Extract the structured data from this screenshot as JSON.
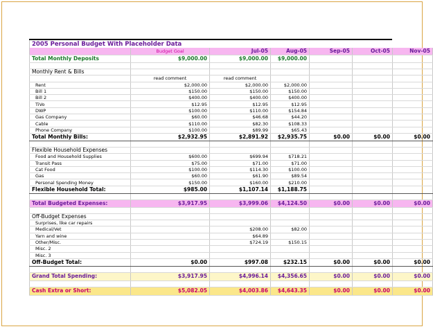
{
  "title": "2005 Personal Budget With Placeholder Data",
  "header": [
    "",
    "Budget Goal",
    "Jul-05",
    "Aug-05",
    "Sep-05",
    "Oct-05",
    "Nov-05"
  ],
  "deposits": {
    "label": "Total Monthly Deposits",
    "values": [
      "$9,000.00",
      "$9,000.00",
      "$9,000.00",
      "",
      "",
      ""
    ]
  },
  "rent": {
    "section": "Monthly Rent & Bills",
    "note": [
      "read comment",
      "read comment"
    ],
    "items": [
      [
        "Rent",
        "$2,000.00",
        "$2,000.00",
        "$2,000.00"
      ],
      [
        "Bill 1",
        "$150.00",
        "$150.00",
        "$150.00"
      ],
      [
        "Bill 2",
        "$400.00",
        "$400.00",
        "$400.00"
      ],
      [
        "TiVo",
        "$12.95",
        "$12.95",
        "$12.95"
      ],
      [
        "DWP",
        "$100.00",
        "$110.00",
        "$154.84"
      ],
      [
        "Gas Company",
        "$60.00",
        "$46.68",
        "$44.20"
      ],
      [
        "Cable",
        "$110.00",
        "$82.30",
        "$108.33"
      ],
      [
        "Phone Company",
        "$100.00",
        "$89.99",
        "$65.43"
      ]
    ],
    "total": [
      "Total Monthly Bills:",
      "$2,932.95",
      "$2,891.92",
      "$2,935.75",
      "$0.00",
      "$0.00",
      "$0.00"
    ]
  },
  "household": {
    "section": "Flexible Household Expenses",
    "items": [
      [
        "Food and Household Supplies",
        "$600.00",
        "$699.94",
        "$718.21"
      ],
      [
        "Transit Pass",
        "$75.00",
        "$71.00",
        "$71.00"
      ],
      [
        "Cat Food",
        "$100.00",
        "$114.30",
        "$100.00"
      ],
      [
        "Gas",
        "$60.00",
        "$61.90",
        "$89.54"
      ],
      [
        "Personal Spending Money",
        "$150.00",
        "$160.00",
        "$210.00"
      ]
    ],
    "total": [
      "Flexible Household Total:",
      "$985.00",
      "$1,107.14",
      "$1,188.75",
      "",
      "",
      ""
    ]
  },
  "budgeted": [
    "Total Budgeted Expenses:",
    "$3,917.95",
    "$3,999.06",
    "$4,124.50",
    "$0.00",
    "$0.00",
    "$0.00"
  ],
  "offbudget": {
    "section": "Off-Budget Expenses",
    "items": [
      [
        "Surprises, like car repairs",
        "",
        "",
        ""
      ],
      [
        "Medical/Vet",
        "",
        "$208.00",
        "$82.00"
      ],
      [
        "Yarn and wine",
        "",
        "$64.89",
        ""
      ],
      [
        "Other/Misc.",
        "",
        "$724.19",
        "$150.15"
      ],
      [
        "Misc. 2",
        "",
        "",
        ""
      ],
      [
        "Misc. 3",
        "",
        "",
        ""
      ]
    ],
    "total": [
      "Off-Budget Total:",
      "$0.00",
      "$997.08",
      "$232.15",
      "$0.00",
      "$0.00",
      "$0.00"
    ]
  },
  "grand": [
    "Grand Total Spending:",
    "$3,917.95",
    "$4,996.14",
    "$4,356.65",
    "$0.00",
    "$0.00",
    "$0.00"
  ],
  "cash": [
    "Cash Extra or Short:",
    "$5,082.05",
    "$4,003.86",
    "$4,643.35",
    "$0.00",
    "$0.00",
    "$0.00"
  ]
}
